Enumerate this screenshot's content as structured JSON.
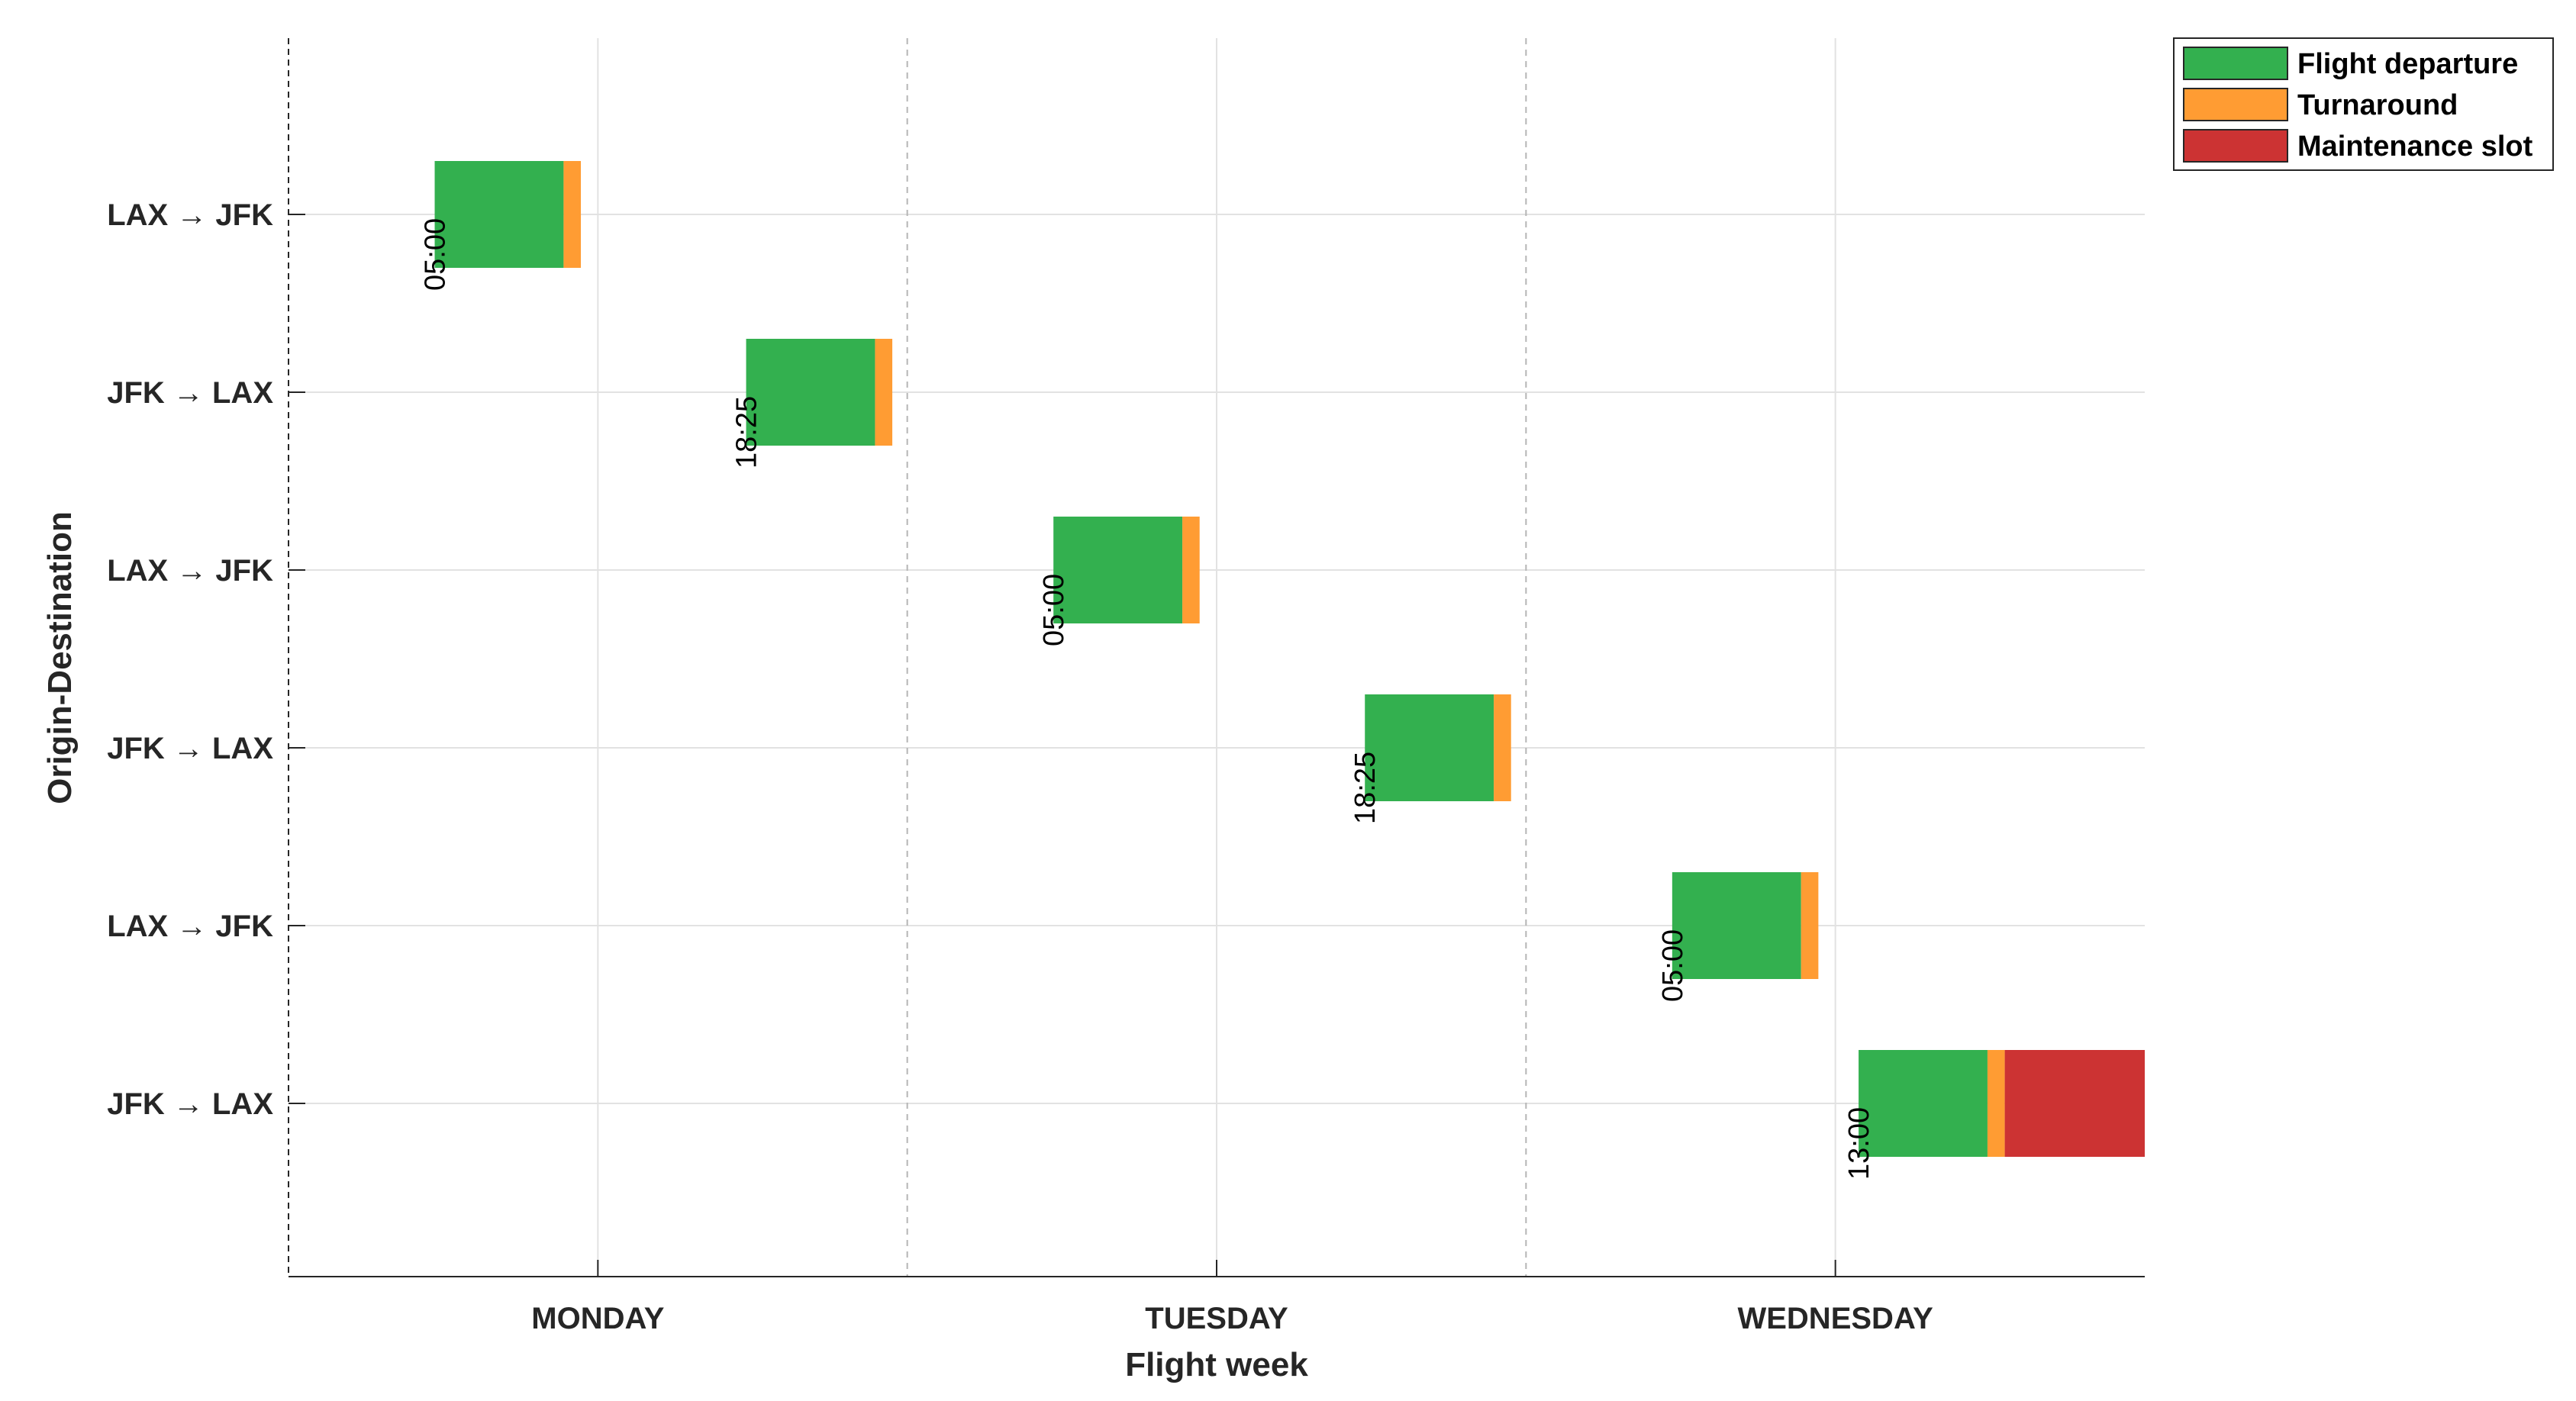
{
  "chart_data": {
    "type": "gantt",
    "title": "",
    "xlabel": "Flight week",
    "ylabel": "Origin-Destination",
    "x_unit": "hours from Monday 00:00",
    "xlim": [
      0,
      72
    ],
    "categories_x": [
      {
        "label": "MONDAY",
        "center": 12
      },
      {
        "label": "TUESDAY",
        "center": 36
      },
      {
        "label": "WEDNESDAY",
        "center": 60
      }
    ],
    "day_separators": [
      0,
      24,
      48
    ],
    "grid": true,
    "rows": [
      {
        "label": "LAX → JFK",
        "departure_label": "05:00",
        "start": 5.67,
        "flight_hours": 5.0,
        "turnaround_hours": 0.67,
        "maintenance_hours": 0
      },
      {
        "label": "JFK → LAX",
        "departure_label": "18:25",
        "start": 17.75,
        "flight_hours": 5.0,
        "turnaround_hours": 0.67,
        "maintenance_hours": 0
      },
      {
        "label": "LAX → JFK",
        "departure_label": "05:00",
        "start": 29.67,
        "flight_hours": 5.0,
        "turnaround_hours": 0.67,
        "maintenance_hours": 0
      },
      {
        "label": "JFK → LAX",
        "departure_label": "18:25",
        "start": 41.75,
        "flight_hours": 5.0,
        "turnaround_hours": 0.67,
        "maintenance_hours": 0
      },
      {
        "label": "LAX → JFK",
        "departure_label": "05:00",
        "start": 53.67,
        "flight_hours": 5.0,
        "turnaround_hours": 0.67,
        "maintenance_hours": 0
      },
      {
        "label": "JFK → LAX",
        "departure_label": "13:00",
        "start": 60.9,
        "flight_hours": 5.0,
        "turnaround_hours": 0.67,
        "maintenance_hours": 5.43
      }
    ],
    "legend": {
      "position": "top-right",
      "entries": [
        {
          "key": "flight",
          "label": "Flight departure",
          "color": "#33b04f"
        },
        {
          "key": "turnaround",
          "label": "Turnaround",
          "color": "#ff9c33"
        },
        {
          "key": "maintenance",
          "label": "Maintenance slot",
          "color": "#cc3333"
        }
      ]
    }
  }
}
